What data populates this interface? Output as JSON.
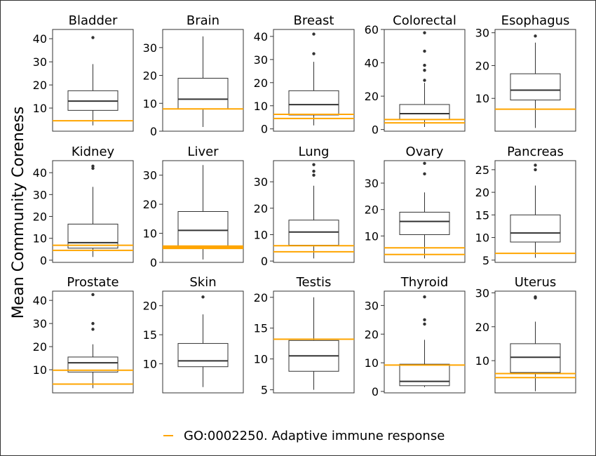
{
  "chart_data": {
    "type": "boxplot",
    "ylabel": "Mean Community Coreness",
    "legend": {
      "label": "GO:0002250. Adaptive immune response",
      "color": "#FFA500",
      "placement": "bottom-center"
    },
    "box_color": "#333333",
    "panels": [
      {
        "title": "Bladder",
        "ylim": [
          0,
          44
        ],
        "ticks": [
          10,
          20,
          30,
          40
        ],
        "box": {
          "whisker_low": 2.5,
          "q1": 9,
          "median": 13,
          "q3": 17.5,
          "whisker_high": 29
        },
        "outliers": [
          40.5
        ],
        "reference_lines": [
          4.5
        ]
      },
      {
        "title": "Brain",
        "ylim": [
          0,
          36.5
        ],
        "ticks": [
          0,
          10,
          20,
          30
        ],
        "box": {
          "whisker_low": 1.5,
          "q1": 8,
          "median": 11.5,
          "q3": 19,
          "whisker_high": 34
        },
        "outliers": [],
        "reference_lines": [
          8
        ]
      },
      {
        "title": "Breast",
        "ylim": [
          -1,
          43
        ],
        "ticks": [
          0,
          10,
          20,
          30,
          40
        ],
        "box": {
          "whisker_low": 1.5,
          "q1": 6,
          "median": 10.5,
          "q3": 16.5,
          "whisker_high": 29
        },
        "outliers": [
          32.5,
          41
        ],
        "reference_lines": [
          4.5,
          6.3
        ]
      },
      {
        "title": "Colorectal",
        "ylim": [
          -1,
          60
        ],
        "ticks": [
          0,
          20,
          40,
          60
        ],
        "box": {
          "whisker_low": 1.5,
          "q1": 6,
          "median": 9.5,
          "q3": 15,
          "whisker_high": 28
        },
        "outliers": [
          29.5,
          35.5,
          38.5,
          47,
          58
        ],
        "reference_lines": [
          4,
          6
        ]
      },
      {
        "title": "Esophagus",
        "ylim": [
          0,
          31
        ],
        "ticks": [
          10,
          20,
          30
        ],
        "box": {
          "whisker_low": 1,
          "q1": 9.5,
          "median": 12.5,
          "q3": 17.5,
          "whisker_high": 27
        },
        "outliers": [
          29
        ],
        "reference_lines": [
          6.7
        ]
      },
      {
        "title": "Kidney",
        "ylim": [
          -1,
          45.5
        ],
        "ticks": [
          0,
          10,
          20,
          30,
          40
        ],
        "box": {
          "whisker_low": 1.5,
          "q1": 5.5,
          "median": 8,
          "q3": 16.5,
          "whisker_high": 33.5
        },
        "outliers": [
          42,
          43
        ],
        "reference_lines": [
          4.5,
          6.8
        ]
      },
      {
        "title": "Liver",
        "ylim": [
          0,
          35
        ],
        "ticks": [
          0,
          10,
          20,
          30
        ],
        "box": {
          "whisker_low": 1,
          "q1": 5,
          "median": 11,
          "q3": 17.5,
          "whisker_high": 33.5
        },
        "outliers": [],
        "reference_lines": [
          4.8,
          5.2,
          5.6
        ]
      },
      {
        "title": "Lung",
        "ylim": [
          -0.5,
          38
        ],
        "ticks": [
          0,
          10,
          20,
          30
        ],
        "box": {
          "whisker_low": 1,
          "q1": 6,
          "median": 11,
          "q3": 15.5,
          "whisker_high": 28.5
        },
        "outliers": [
          32.5,
          34,
          36.5
        ],
        "reference_lines": [
          3.5,
          5.8
        ]
      },
      {
        "title": "Ovary",
        "ylim": [
          0,
          38.5
        ],
        "ticks": [
          10,
          20,
          30
        ],
        "box": {
          "whisker_low": 1.5,
          "q1": 10.5,
          "median": 15.5,
          "q3": 19,
          "whisker_high": 26.5
        },
        "outliers": [
          33.5,
          37.5
        ],
        "reference_lines": [
          3,
          5.5
        ]
      },
      {
        "title": "Pancreas",
        "ylim": [
          4.5,
          27
        ],
        "ticks": [
          5,
          10,
          15,
          20,
          25
        ],
        "box": {
          "whisker_low": 5.5,
          "q1": 9,
          "median": 11,
          "q3": 15,
          "whisker_high": 21.5
        },
        "outliers": [
          25,
          26
        ],
        "reference_lines": [
          6.5
        ]
      },
      {
        "title": "Prostate",
        "ylim": [
          0,
          44
        ],
        "ticks": [
          10,
          20,
          30,
          40
        ],
        "box": {
          "whisker_low": 2,
          "q1": 9,
          "median": 13,
          "q3": 15.5,
          "whisker_high": 21
        },
        "outliers": [
          27.5,
          30,
          42.5
        ],
        "reference_lines": [
          3.8,
          9.8
        ]
      },
      {
        "title": "Skin",
        "ylim": [
          5,
          22.5
        ],
        "ticks": [
          10,
          15,
          20
        ],
        "box": {
          "whisker_low": 6,
          "q1": 9.5,
          "median": 10.5,
          "q3": 13.5,
          "whisker_high": 18.5
        },
        "outliers": [
          21.5
        ],
        "reference_lines": []
      },
      {
        "title": "Testis",
        "ylim": [
          4.5,
          21
        ],
        "ticks": [
          5,
          10,
          15,
          20
        ],
        "box": {
          "whisker_low": 5,
          "q1": 8,
          "median": 10.5,
          "q3": 13,
          "whisker_high": 20
        },
        "outliers": [],
        "reference_lines": [
          13.2
        ]
      },
      {
        "title": "Thyroid",
        "ylim": [
          -0.5,
          35
        ],
        "ticks": [
          0,
          10,
          20,
          30
        ],
        "box": {
          "whisker_low": 1.5,
          "q1": 2,
          "median": 3.5,
          "q3": 9.5,
          "whisker_high": 18
        },
        "outliers": [
          23.5,
          25,
          33
        ],
        "reference_lines": [
          9.2
        ]
      },
      {
        "title": "Uterus",
        "ylim": [
          0.5,
          30.5
        ],
        "ticks": [
          10,
          20,
          30
        ],
        "box": {
          "whisker_low": 1,
          "q1": 6.5,
          "median": 11,
          "q3": 15,
          "whisker_high": 21.5
        },
        "outliers": [
          28.5,
          28.8
        ],
        "reference_lines": [
          5,
          6.2
        ]
      }
    ]
  }
}
